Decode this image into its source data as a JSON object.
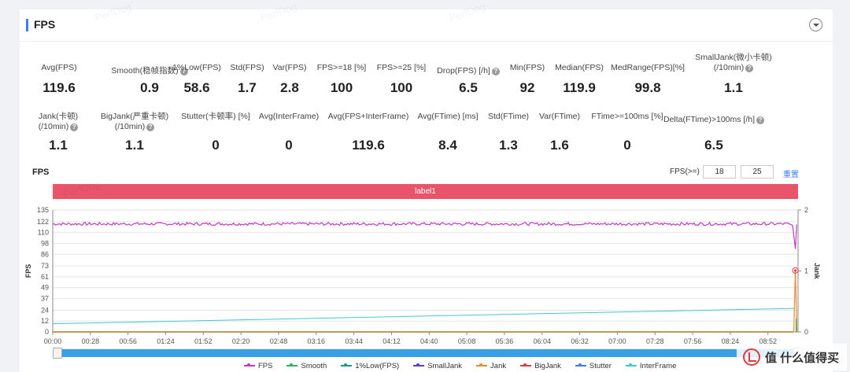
{
  "panel": {
    "title": "FPS"
  },
  "stats_row1": [
    {
      "label": "Avg(FPS)",
      "value": "119.6",
      "help": false
    },
    {
      "label": "Smooth(稳帧指数)",
      "value": "0.9",
      "help": true
    },
    {
      "label": "1%Low(FPS)",
      "value": "58.6",
      "help": false
    },
    {
      "label": "Std(FPS)",
      "value": "1.7",
      "help": false
    },
    {
      "label": "Var(FPS)",
      "value": "2.8",
      "help": false
    },
    {
      "label": "FPS>=18 [%]",
      "value": "100",
      "help": false
    },
    {
      "label": "FPS>=25 [%]",
      "value": "100",
      "help": false
    },
    {
      "label": "Drop(FPS) [/h]",
      "value": "6.5",
      "help": true
    },
    {
      "label": "Min(FPS)",
      "value": "92",
      "help": false
    },
    {
      "label": "Median(FPS)",
      "value": "119.9",
      "help": false
    },
    {
      "label": "MedRange(FPS)[%]",
      "value": "99.8",
      "help": false
    },
    {
      "label": "SmallJank(微小卡顿)",
      "label2": "(/10min)",
      "value": "1.1",
      "help": true
    }
  ],
  "stats_row2": [
    {
      "label": "Jank(卡顿)",
      "label2": "(/10min)",
      "value": "1.1",
      "help": true
    },
    {
      "label": "BigJank(严重卡顿)",
      "label2": "(/10min)",
      "value": "1.1",
      "help": true
    },
    {
      "label": "Stutter(卡顿率) [%]",
      "value": "0",
      "help": false
    },
    {
      "label": "Avg(InterFrame)",
      "value": "0",
      "help": false
    },
    {
      "label": "Avg(FPS+InterFrame)",
      "value": "119.6",
      "help": false
    },
    {
      "label": "Avg(FTime) [ms]",
      "value": "8.4",
      "help": false
    },
    {
      "label": "Std(FTime)",
      "value": "1.3",
      "help": false
    },
    {
      "label": "Var(FTime)",
      "value": "1.6",
      "help": false
    },
    {
      "label": "FTime>=100ms [%]",
      "value": "0",
      "help": false
    },
    {
      "label": "Delta(FTime)>100ms [/h]",
      "value": "6.5",
      "help": true
    }
  ],
  "chart_header": {
    "title": "FPS",
    "fps_ge_label": "FPS(>=)",
    "threshold_1": "18",
    "threshold_2": "25",
    "reset_label": "重置"
  },
  "label_band": "label1",
  "watermark": "PerfDog",
  "corner_badge": "值 什么值得买",
  "chart_data": {
    "type": "line",
    "x_ticks": [
      "00:00",
      "00:28",
      "00:56",
      "01:24",
      "01:52",
      "02:20",
      "02:48",
      "03:16",
      "03:44",
      "04:12",
      "04:40",
      "05:08",
      "05:36",
      "06:04",
      "06:32",
      "07:00",
      "07:28",
      "07:56",
      "08:24",
      "08:52"
    ],
    "y_left_label": "FPS",
    "y_left_ticks": [
      0,
      12,
      24,
      37,
      49,
      61,
      73,
      86,
      98,
      110,
      122,
      135
    ],
    "y_left_range": [
      0,
      135
    ],
    "y_right_label": "Jank",
    "y_right_ticks": [
      0,
      1,
      2
    ],
    "y_right_range": [
      0,
      2
    ],
    "x_range_seconds": [
      0,
      550
    ],
    "series": [
      {
        "name": "FPS",
        "color": "#c23ac4",
        "approx_value": 119.6,
        "min_value": 92,
        "min_at_seconds": 548
      },
      {
        "name": "Smooth",
        "color": "#2db55d",
        "approx_value": 0
      },
      {
        "name": "1%Low(FPS)",
        "color": "#129e86",
        "approx_value": 0
      },
      {
        "name": "SmallJank",
        "color": "#5b3bd6",
        "approx_value": 0
      },
      {
        "name": "Jank",
        "color": "#f08a24",
        "approx_value": 0,
        "spike_value": 68,
        "spike_at_seconds": 548
      },
      {
        "name": "BigJank",
        "color": "#e4393c",
        "approx_value": 0,
        "marker_value": 68,
        "marker_at_seconds": 548
      },
      {
        "name": "Stutter",
        "color": "#3b7cff",
        "approx_value": 0
      },
      {
        "name": "InterFrame",
        "color": "#3ecbcb",
        "start_value": 9,
        "end_value": 26
      }
    ]
  },
  "colors": {
    "accent": "#3b7cff",
    "label_band": "#e9546b",
    "scrollbar": "#3aa0e6"
  }
}
